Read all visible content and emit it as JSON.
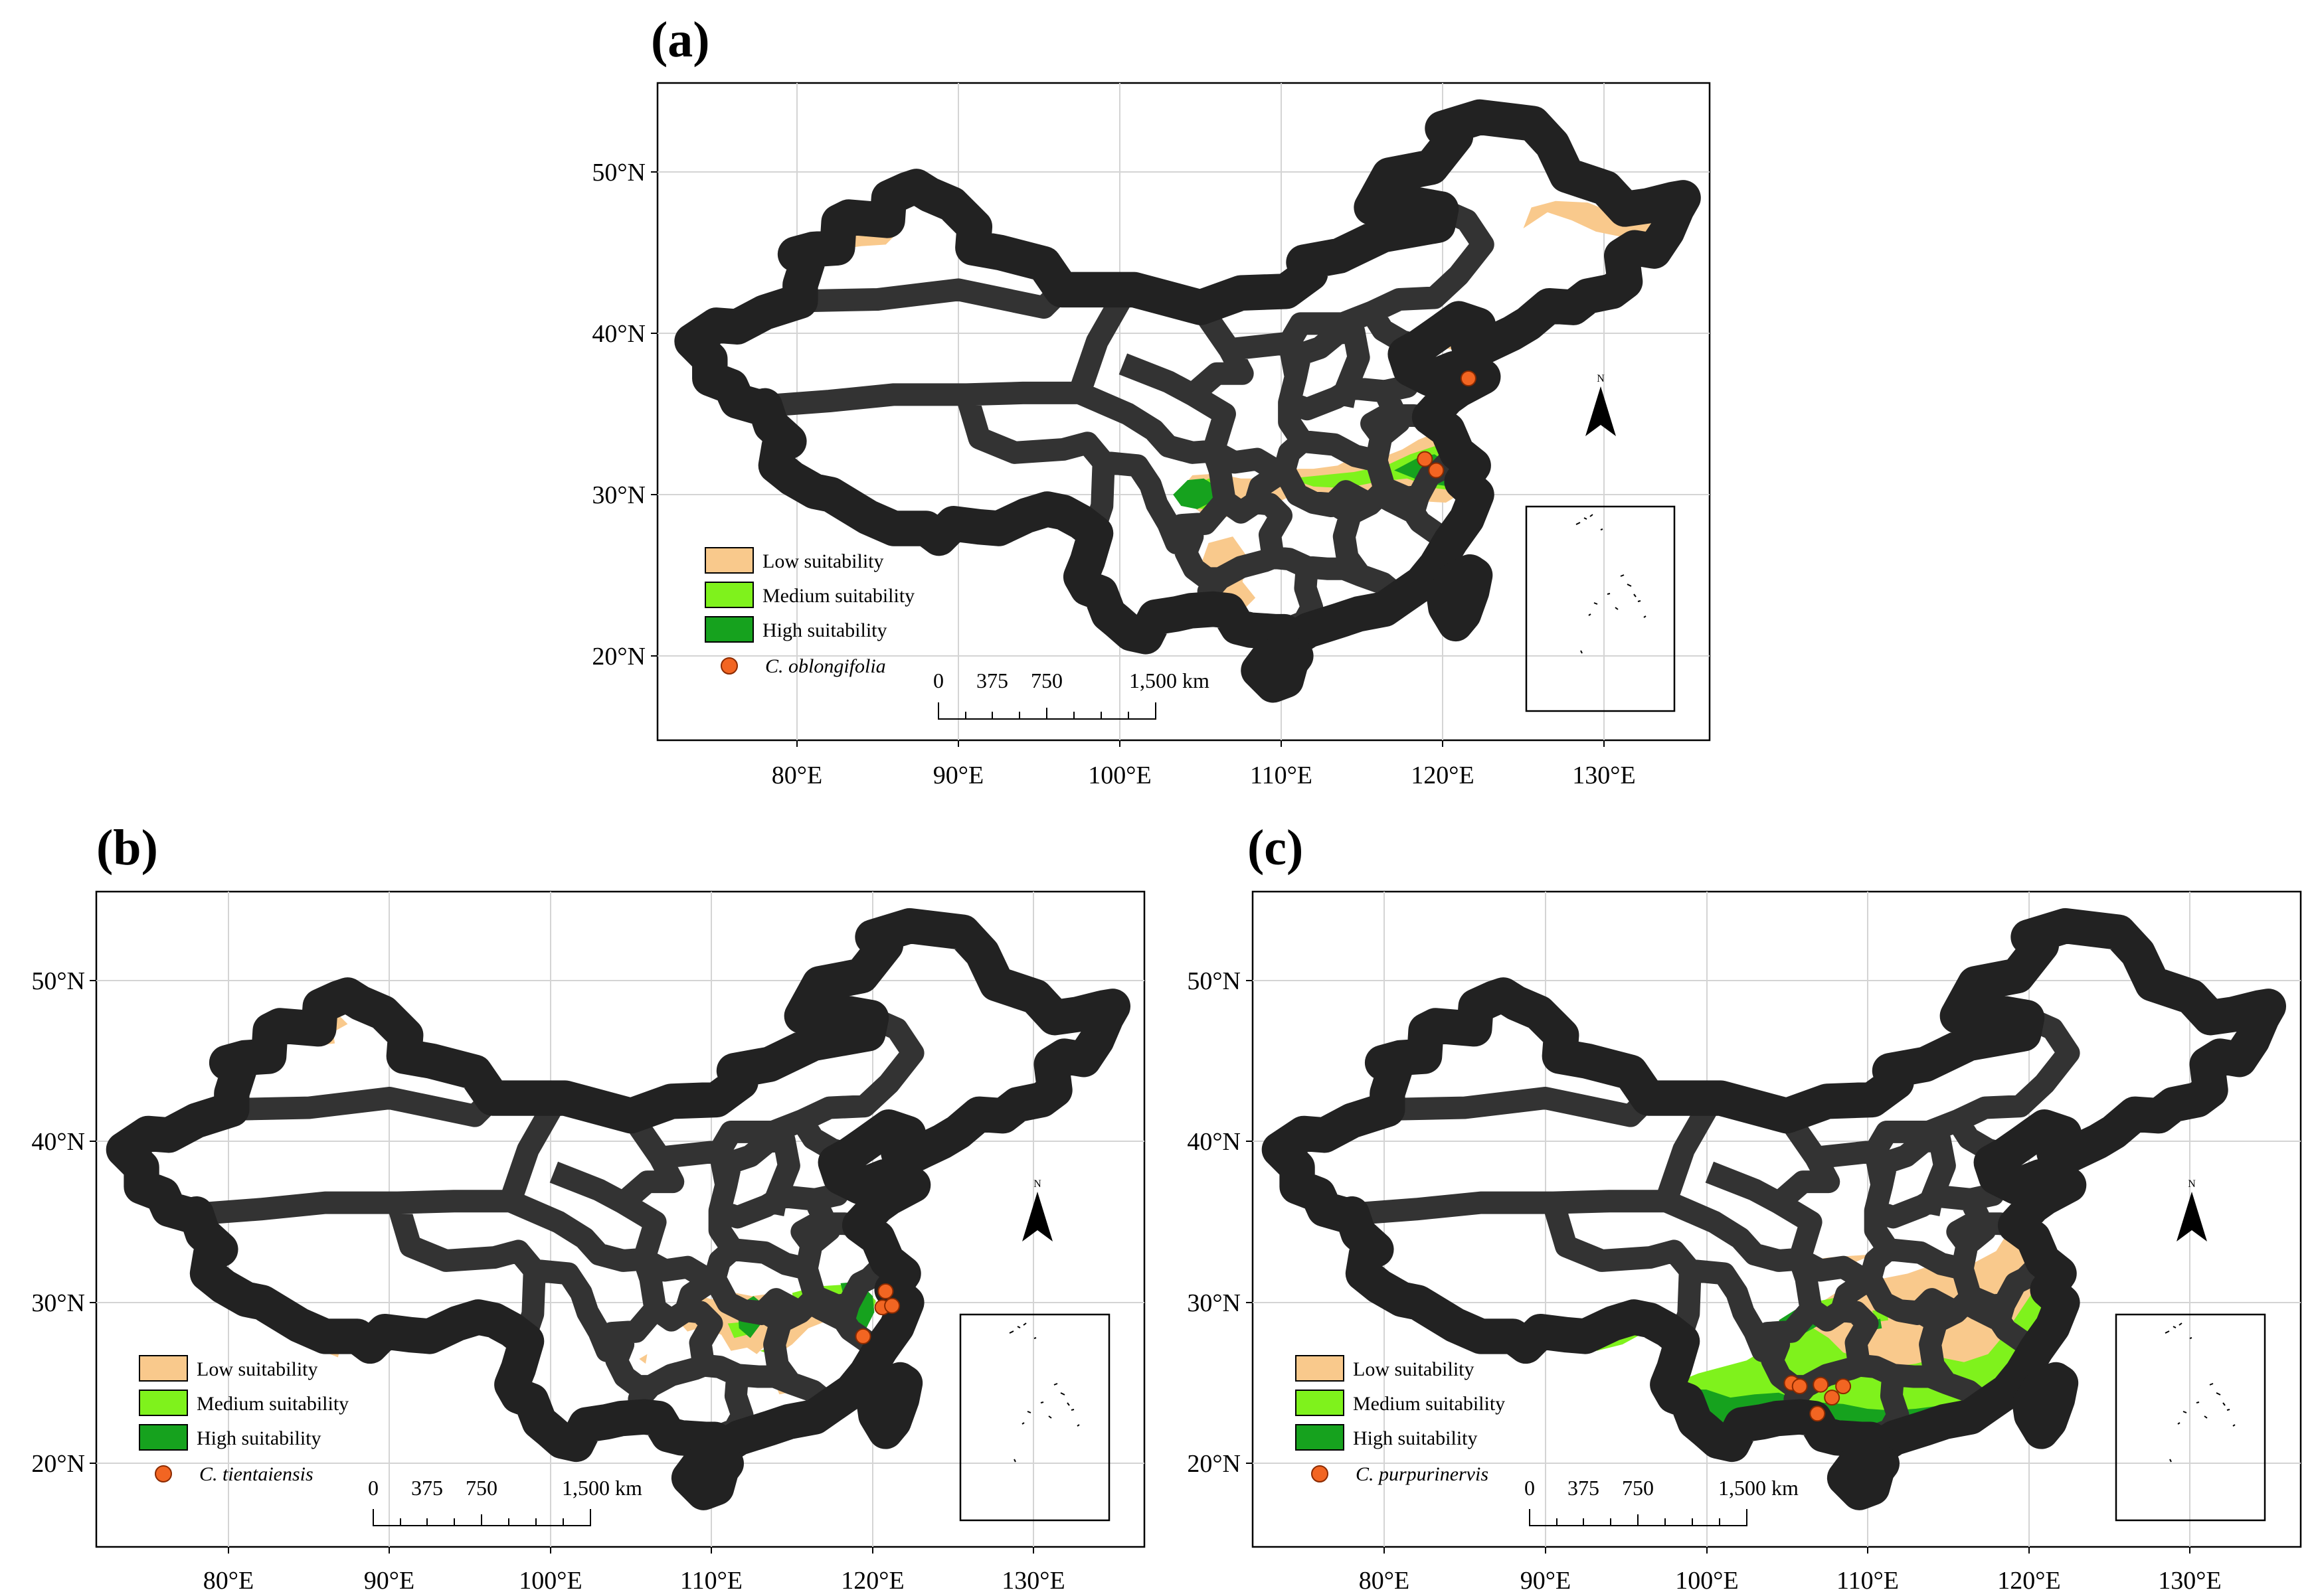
{
  "figure": {
    "colors": {
      "low": "#f9c98c",
      "medium": "#7ff21c",
      "high": "#16a21e",
      "occurrence": "#f26522",
      "occurrence_stroke": "#8a2a00"
    },
    "legend_labels": {
      "low": "Low suitability",
      "medium": "Medium suitability",
      "high": "High suitability"
    },
    "axes": {
      "lon_ticks": [
        "80°E",
        "90°E",
        "100°E",
        "110°E",
        "120°E",
        "130°E"
      ],
      "lat_ticks": [
        "50°N",
        "40°N",
        "30°N",
        "20°N"
      ]
    },
    "scale_bar": {
      "labels": [
        "0",
        "375",
        "750",
        "1,500 km"
      ]
    },
    "north_arrow_label": "N"
  },
  "panels": [
    {
      "id": "a",
      "label": "(a)",
      "species": "C. oblongifolia",
      "occurrences_lonlat": [
        [
          118.9,
          32.2
        ],
        [
          119.6,
          31.5
        ],
        [
          121.6,
          37.2
        ]
      ]
    },
    {
      "id": "b",
      "label": "(b)",
      "species": "C. tientaiensis",
      "occurrences_lonlat": [
        [
          120.8,
          30.7
        ],
        [
          120.6,
          29.7
        ],
        [
          121.2,
          29.8
        ],
        [
          119.4,
          27.9
        ]
      ]
    },
    {
      "id": "c",
      "label": "(c)",
      "species": "C. purpurinervis",
      "occurrences_lonlat": [
        [
          105.3,
          25.0
        ],
        [
          105.8,
          24.8
        ],
        [
          107.1,
          24.9
        ],
        [
          107.8,
          24.1
        ],
        [
          108.5,
          24.8
        ],
        [
          106.9,
          23.1
        ]
      ]
    }
  ]
}
